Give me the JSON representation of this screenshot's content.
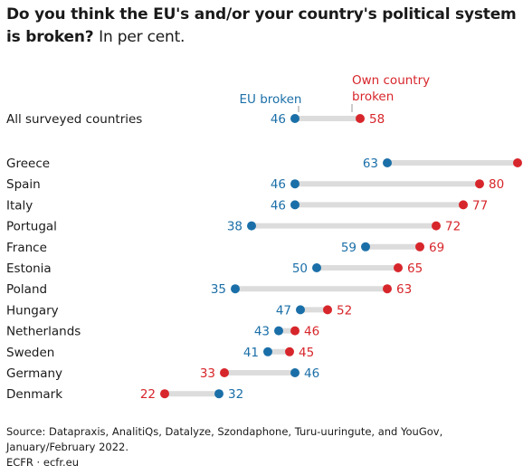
{
  "header": {
    "title": "Do you think the EU's and/or your country's political system is broken?",
    "subtitle": "In per cent."
  },
  "legend": {
    "eu_label": "EU broken",
    "own_label_line1": "Own country",
    "own_label_line2": "broken"
  },
  "colors": {
    "eu": "#1b6fa8",
    "own": "#d7262b",
    "connector": "#dcdcdc",
    "text": "#1a1a1a"
  },
  "chart_data": {
    "type": "dot-plot",
    "series": [
      {
        "key": "eu",
        "name": "EU broken"
      },
      {
        "key": "own",
        "name": "Own country broken"
      }
    ],
    "summary": {
      "country": "All surveyed countries",
      "eu": 46,
      "own": 58
    },
    "rows": [
      {
        "country": "Greece",
        "eu": 63,
        "own": 87
      },
      {
        "country": "Spain",
        "eu": 46,
        "own": 80
      },
      {
        "country": "Italy",
        "eu": 46,
        "own": 77
      },
      {
        "country": "Portugal",
        "eu": 38,
        "own": 72
      },
      {
        "country": "France",
        "eu": 59,
        "own": 69
      },
      {
        "country": "Estonia",
        "eu": 50,
        "own": 65
      },
      {
        "country": "Poland",
        "eu": 35,
        "own": 63
      },
      {
        "country": "Hungary",
        "eu": 47,
        "own": 52
      },
      {
        "country": "Netherlands",
        "eu": 43,
        "own": 46
      },
      {
        "country": "Sweden",
        "eu": 41,
        "own": 45
      },
      {
        "country": "Germany",
        "eu": 46,
        "own": 33
      },
      {
        "country": "Denmark",
        "eu": 32,
        "own": 22
      }
    ],
    "xlim": [
      0,
      100
    ],
    "grid": false
  },
  "footer": {
    "source": "Source: Datapraxis, AnalitiQs, Datalyze, Szondaphone, Turu-uuringute, and YouGov, January/February 2022.",
    "credit": "ECFR · ecfr.eu"
  }
}
